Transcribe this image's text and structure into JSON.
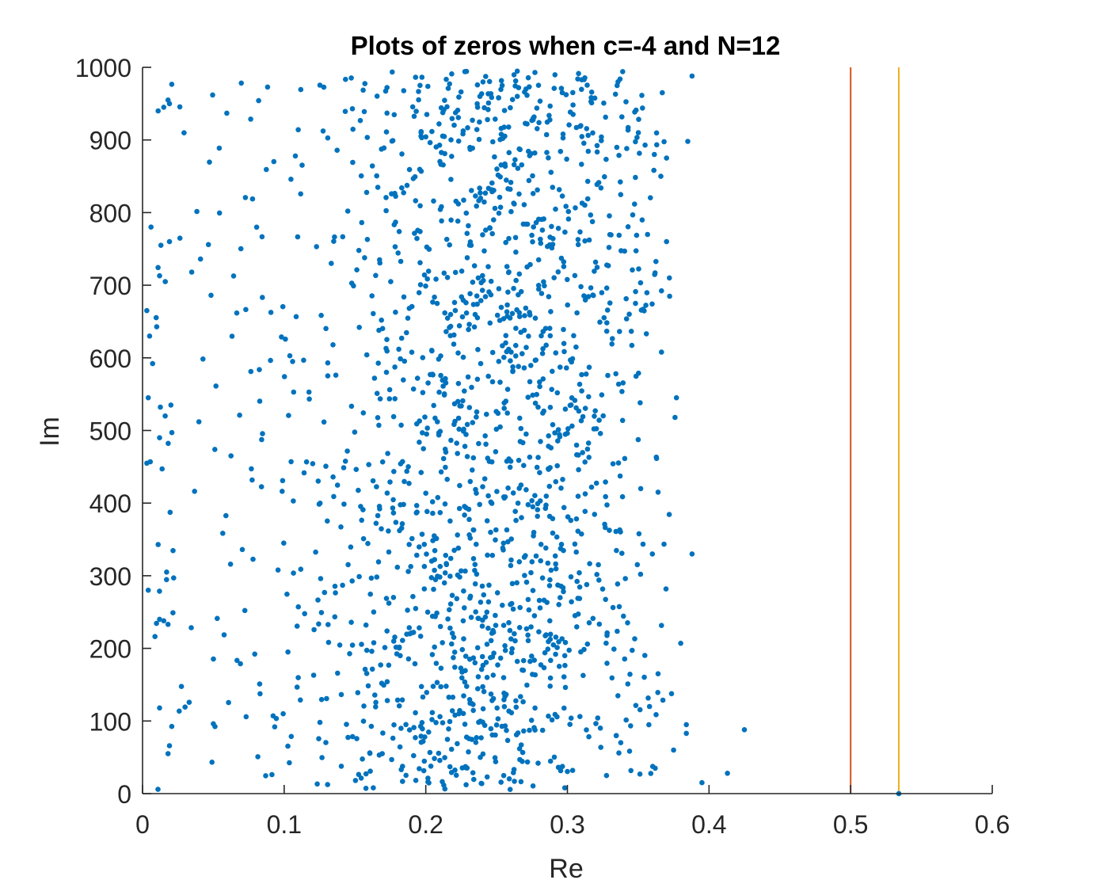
{
  "chart_data": {
    "type": "scatter",
    "title": "Plots of zeros when c=-4 and N=12",
    "xlabel": "Re",
    "ylabel": "Im",
    "xlim": [
      0,
      0.6
    ],
    "ylim": [
      0,
      1000
    ],
    "xticks": [
      0,
      0.1,
      0.2,
      0.3,
      0.4,
      0.5,
      0.6
    ],
    "xtick_labels": [
      "0",
      "0.1",
      "0.2",
      "0.3",
      "0.4",
      "0.5",
      "0.6"
    ],
    "yticks": [
      0,
      100,
      200,
      300,
      400,
      500,
      600,
      700,
      800,
      900,
      1000
    ],
    "ytick_labels": [
      "0",
      "100",
      "200",
      "300",
      "400",
      "500",
      "600",
      "700",
      "800",
      "900",
      "1000"
    ],
    "grid": false,
    "box": "left-bottom",
    "marker_color": "#0072BD",
    "vertical_lines": [
      {
        "x": 0.5,
        "color": "#D95319"
      },
      {
        "x": 0.534,
        "color": "#EDB120"
      }
    ],
    "series": [
      {
        "marker": "point",
        "points": [
          [
            0.534,
            0
          ],
          [
            0.005,
            630
          ],
          [
            0.004,
            545
          ],
          [
            0.003,
            455
          ],
          [
            0.004,
            280
          ],
          [
            0.006,
            780
          ],
          [
            0.003,
            665
          ],
          [
            0.011,
            940
          ],
          [
            0.015,
            945
          ],
          [
            0.019,
            950
          ],
          [
            0.018,
            955
          ],
          [
            0.012,
            713
          ],
          [
            0.013,
            755
          ],
          [
            0.019,
            760
          ],
          [
            0.012,
            490
          ],
          [
            0.016,
            520
          ],
          [
            0.02,
            535
          ],
          [
            0.012,
            240
          ],
          [
            0.015,
            238
          ],
          [
            0.018,
            233
          ],
          [
            0.011,
            343
          ],
          [
            0.012,
            118
          ],
          [
            0.018,
            55
          ],
          [
            0.017,
            305
          ],
          [
            0.019,
            66
          ],
          [
            0.022,
            297
          ],
          [
            0.425,
            88
          ],
          [
            0.413,
            28
          ],
          [
            0.395,
            15
          ],
          [
            0.388,
            988
          ],
          [
            0.388,
            330
          ],
          [
            0.385,
            898
          ],
          [
            0.38,
            207
          ],
          [
            0.384,
            83
          ],
          [
            0.384,
            95
          ],
          [
            0.376,
            518
          ],
          [
            0.377,
            545
          ],
          [
            0.375,
            60
          ],
          [
            0.372,
            710
          ],
          [
            0.37,
            760
          ],
          [
            0.37,
            875
          ],
          [
            0.367,
            965
          ],
          [
            0.366,
            850
          ],
          [
            0.364,
            415
          ],
          [
            0.364,
            165
          ],
          [
            0.362,
            35
          ],
          [
            0.36,
            330
          ],
          [
            0.358,
            120
          ]
        ]
      }
    ]
  }
}
